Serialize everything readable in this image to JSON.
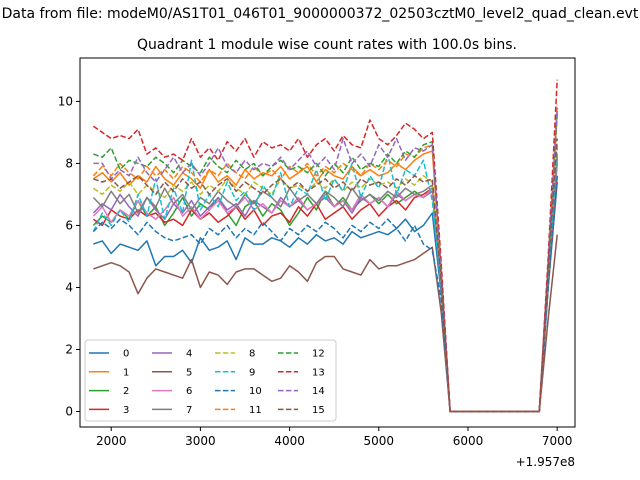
{
  "figure": {
    "suptitle": "Data from file: modeM0/AS1T01_046T01_9000000372_02503cztM0_level2_quad_clean.evt",
    "axis_offset_label": "+1.957e8"
  },
  "chart_data": {
    "type": "line",
    "title": "Quadrant 1 module wise count rates with 100.0s bins.",
    "xlabel": "",
    "ylabel": "",
    "x_offset": 195700000,
    "xlim": [
      1650,
      7200
    ],
    "ylim": [
      -0.5,
      11.4
    ],
    "xticks": [
      2000,
      3000,
      4000,
      5000,
      6000,
      7000
    ],
    "xtick_labels": [
      "2000",
      "3000",
      "4000",
      "5000",
      "6000",
      "7000"
    ],
    "yticks": [
      0,
      2,
      4,
      6,
      8,
      10
    ],
    "ytick_labels": [
      "0",
      "2",
      "4",
      "6",
      "8",
      "10"
    ],
    "grid": false,
    "legend": {
      "position": "lower-left",
      "columns": 4
    },
    "x": [
      1800,
      1900,
      2000,
      2100,
      2200,
      2300,
      2400,
      2500,
      2600,
      2700,
      2800,
      2900,
      3000,
      3100,
      3200,
      3300,
      3400,
      3500,
      3600,
      3700,
      3800,
      3900,
      4000,
      4100,
      4200,
      4300,
      4400,
      4500,
      4600,
      4700,
      4800,
      4900,
      5000,
      5100,
      5200,
      5300,
      5400,
      5500,
      5600,
      5700,
      5800,
      5900,
      6000,
      6100,
      6200,
      6300,
      6400,
      6500,
      6600,
      6700,
      6800,
      6900,
      7000
    ],
    "series": [
      {
        "name": "0",
        "color": "#1f77b4",
        "dash": "solid",
        "values": [
          5.4,
          5.5,
          5.1,
          5.4,
          5.3,
          5.2,
          5.5,
          4.7,
          5.0,
          5.0,
          5.2,
          4.8,
          5.6,
          5.2,
          5.3,
          5.5,
          4.9,
          5.6,
          5.4,
          5.4,
          5.6,
          5.5,
          5.3,
          5.6,
          5.4,
          5.7,
          5.5,
          5.6,
          5.4,
          5.8,
          5.6,
          5.7,
          5.8,
          5.7,
          5.9,
          6.2,
          5.8,
          6.0,
          6.4,
          3.8,
          0.0,
          0.0,
          0.0,
          0.0,
          0.0,
          0.0,
          0.0,
          0.0,
          0.0,
          0.0,
          0.0,
          4.0,
          7.4
        ]
      },
      {
        "name": "1",
        "color": "#ff7f0e",
        "dash": "solid",
        "values": [
          7.5,
          7.7,
          7.4,
          7.7,
          7.3,
          7.6,
          7.4,
          7.9,
          7.5,
          7.3,
          7.7,
          7.5,
          7.2,
          7.8,
          7.4,
          7.6,
          7.3,
          7.8,
          7.5,
          7.7,
          7.6,
          7.9,
          7.5,
          7.7,
          7.9,
          7.4,
          7.8,
          7.6,
          7.5,
          7.9,
          7.6,
          7.8,
          7.6,
          7.7,
          8.0,
          7.8,
          8.1,
          8.3,
          8.4,
          4.5,
          0.0,
          0.0,
          0.0,
          0.0,
          0.0,
          0.0,
          0.0,
          0.0,
          0.0,
          0.0,
          0.0,
          4.5,
          9.7
        ]
      },
      {
        "name": "2",
        "color": "#2ca02c",
        "dash": "solid",
        "values": [
          6.0,
          6.3,
          6.1,
          6.5,
          6.2,
          6.8,
          6.3,
          6.6,
          6.0,
          6.4,
          6.9,
          6.3,
          6.7,
          6.5,
          6.9,
          6.4,
          6.0,
          6.6,
          6.8,
          6.3,
          6.7,
          6.5,
          6.0,
          6.4,
          6.9,
          6.5,
          7.1,
          6.6,
          6.9,
          6.5,
          6.8,
          7.0,
          6.7,
          7.0,
          6.7,
          6.9,
          7.1,
          6.9,
          7.2,
          4.0,
          0.0,
          0.0,
          0.0,
          0.0,
          0.0,
          0.0,
          0.0,
          0.0,
          0.0,
          0.0,
          0.0,
          4.2,
          8.0
        ]
      },
      {
        "name": "3",
        "color": "#d62728",
        "dash": "solid",
        "values": [
          6.2,
          6.0,
          6.5,
          6.3,
          6.2,
          6.5,
          6.3,
          6.4,
          6.1,
          6.2,
          6.0,
          6.5,
          6.2,
          6.4,
          6.1,
          6.3,
          6.6,
          6.2,
          6.5,
          6.0,
          6.3,
          6.4,
          6.1,
          6.6,
          6.3,
          6.7,
          6.2,
          6.4,
          6.6,
          6.2,
          6.5,
          6.7,
          6.3,
          6.6,
          6.8,
          6.5,
          6.9,
          7.0,
          7.2,
          4.0,
          0.0,
          0.0,
          0.0,
          0.0,
          0.0,
          0.0,
          0.0,
          0.0,
          0.0,
          0.0,
          0.0,
          4.1,
          7.6
        ]
      },
      {
        "name": "4",
        "color": "#9467bd",
        "dash": "solid",
        "values": [
          6.4,
          6.7,
          6.5,
          7.0,
          6.6,
          6.3,
          6.9,
          6.5,
          6.2,
          6.7,
          6.4,
          6.8,
          6.3,
          6.6,
          6.9,
          6.5,
          6.7,
          6.3,
          6.8,
          6.6,
          6.4,
          6.9,
          6.6,
          6.8,
          6.5,
          6.7,
          6.9,
          6.6,
          6.8,
          6.4,
          6.9,
          6.7,
          6.9,
          6.6,
          7.0,
          6.8,
          7.0,
          6.9,
          7.1,
          4.0,
          0.0,
          0.0,
          0.0,
          0.0,
          0.0,
          0.0,
          0.0,
          0.0,
          0.0,
          0.0,
          0.0,
          4.2,
          8.2
        ]
      },
      {
        "name": "5",
        "color": "#8c564b",
        "dash": "solid",
        "values": [
          4.6,
          4.7,
          4.8,
          4.7,
          4.5,
          3.8,
          4.3,
          4.6,
          4.5,
          4.4,
          4.3,
          4.9,
          4.0,
          4.5,
          4.4,
          4.1,
          4.5,
          4.6,
          4.6,
          4.4,
          4.2,
          4.3,
          4.7,
          4.5,
          4.2,
          4.8,
          5.0,
          5.0,
          4.6,
          4.5,
          4.4,
          4.9,
          4.6,
          4.7,
          4.7,
          4.8,
          4.9,
          5.1,
          5.3,
          3.2,
          0.0,
          0.0,
          0.0,
          0.0,
          0.0,
          0.0,
          0.0,
          0.0,
          0.0,
          0.0,
          0.0,
          3.0,
          5.7
        ]
      },
      {
        "name": "6",
        "color": "#e377c2",
        "dash": "solid",
        "values": [
          6.3,
          6.6,
          6.1,
          6.5,
          6.3,
          6.8,
          6.4,
          6.2,
          6.5,
          6.9,
          6.3,
          6.6,
          6.2,
          6.5,
          6.8,
          6.4,
          6.6,
          6.9,
          6.5,
          6.7,
          6.4,
          6.8,
          6.6,
          6.9,
          6.5,
          6.7,
          7.0,
          6.6,
          6.8,
          6.5,
          7.0,
          6.7,
          6.9,
          6.6,
          7.1,
          6.8,
          7.0,
          6.9,
          7.2,
          4.0,
          0.0,
          0.0,
          0.0,
          0.0,
          0.0,
          0.0,
          0.0,
          0.0,
          0.0,
          0.0,
          0.0,
          4.3,
          8.1
        ]
      },
      {
        "name": "7",
        "color": "#7f7f7f",
        "dash": "solid",
        "values": [
          6.9,
          6.6,
          7.1,
          6.7,
          7.0,
          6.4,
          6.9,
          6.6,
          7.2,
          6.7,
          7.0,
          6.5,
          6.9,
          6.7,
          7.1,
          6.8,
          6.6,
          7.0,
          6.7,
          7.1,
          6.9,
          6.6,
          7.2,
          6.8,
          7.0,
          6.7,
          7.1,
          6.9,
          6.6,
          7.2,
          6.8,
          7.0,
          6.8,
          7.1,
          6.9,
          7.2,
          7.0,
          7.1,
          7.3,
          4.1,
          0.0,
          0.0,
          0.0,
          0.0,
          0.0,
          0.0,
          0.0,
          0.0,
          0.0,
          0.0,
          0.0,
          4.3,
          8.3
        ]
      },
      {
        "name": "8",
        "color": "#bcbd22",
        "dash": "dashed",
        "values": [
          7.2,
          7.0,
          7.3,
          7.1,
          7.4,
          7.0,
          7.3,
          7.1,
          6.9,
          7.3,
          7.1,
          7.4,
          7.0,
          7.3,
          7.1,
          7.5,
          7.2,
          7.0,
          7.4,
          7.2,
          7.0,
          7.5,
          7.2,
          7.3,
          7.1,
          7.4,
          7.2,
          7.5,
          7.1,
          7.4,
          7.2,
          7.5,
          7.3,
          7.4,
          7.2,
          7.5,
          7.3,
          7.6,
          7.4,
          4.3,
          0.0,
          0.0,
          0.0,
          0.0,
          0.0,
          0.0,
          0.0,
          0.0,
          0.0,
          0.0,
          0.0,
          4.6,
          8.6
        ]
      },
      {
        "name": "9",
        "color": "#17becf",
        "dash": "dashed",
        "values": [
          5.8,
          6.4,
          6.0,
          6.5,
          6.1,
          7.0,
          6.3,
          7.5,
          6.2,
          7.2,
          6.4,
          8.1,
          6.5,
          7.0,
          6.6,
          7.4,
          6.8,
          7.1,
          6.5,
          7.3,
          6.9,
          7.7,
          6.6,
          7.2,
          7.0,
          7.8,
          6.8,
          7.5,
          7.1,
          8.0,
          6.9,
          7.6,
          7.2,
          8.3,
          7.0,
          7.8,
          7.6,
          8.1,
          6.8,
          4.0,
          0.0,
          0.0,
          0.0,
          0.0,
          0.0,
          0.0,
          0.0,
          0.0,
          0.0,
          0.0,
          0.0,
          4.4,
          8.5
        ]
      },
      {
        "name": "10",
        "color": "#1f77b4",
        "dash": "dashed",
        "values": [
          5.8,
          6.1,
          5.9,
          6.2,
          6.0,
          5.7,
          6.1,
          5.8,
          5.6,
          5.5,
          5.6,
          5.7,
          5.4,
          5.9,
          5.7,
          6.0,
          5.6,
          5.9,
          5.7,
          6.1,
          5.8,
          5.5,
          5.9,
          5.7,
          6.0,
          5.8,
          6.1,
          5.9,
          5.6,
          6.0,
          5.8,
          6.1,
          5.9,
          6.2,
          5.9,
          5.5,
          6.0,
          5.4,
          5.2,
          3.6,
          0.0,
          0.0,
          0.0,
          0.0,
          0.0,
          0.0,
          0.0,
          0.0,
          0.0,
          0.0,
          0.0,
          4.0,
          7.6
        ]
      },
      {
        "name": "11",
        "color": "#ff7f0e",
        "dash": "dashed",
        "values": [
          7.6,
          7.9,
          7.6,
          8.0,
          7.7,
          7.5,
          7.9,
          7.6,
          7.8,
          7.5,
          7.9,
          7.7,
          7.4,
          7.8,
          7.6,
          8.0,
          7.7,
          7.5,
          7.9,
          7.6,
          7.8,
          7.5,
          7.9,
          7.7,
          8.0,
          7.6,
          7.9,
          7.7,
          8.0,
          7.8,
          7.6,
          8.0,
          7.8,
          8.1,
          7.9,
          8.3,
          8.2,
          8.5,
          8.6,
          4.6,
          0.0,
          0.0,
          0.0,
          0.0,
          0.0,
          0.0,
          0.0,
          0.0,
          0.0,
          0.0,
          0.0,
          4.8,
          9.9
        ]
      },
      {
        "name": "12",
        "color": "#2ca02c",
        "dash": "dashed",
        "values": [
          8.3,
          8.2,
          8.5,
          7.8,
          8.1,
          8.0,
          7.9,
          8.2,
          8.0,
          7.7,
          8.1,
          7.9,
          7.7,
          8.2,
          7.9,
          7.7,
          8.1,
          7.8,
          8.0,
          7.6,
          7.9,
          8.1,
          7.8,
          7.9,
          7.7,
          8.0,
          7.6,
          8.0,
          7.7,
          8.2,
          7.8,
          8.0,
          7.9,
          8.3,
          8.0,
          8.4,
          8.2,
          8.6,
          8.7,
          4.5,
          0.0,
          0.0,
          0.0,
          0.0,
          0.0,
          0.0,
          0.0,
          0.0,
          0.0,
          0.0,
          0.0,
          4.7,
          9.6
        ]
      },
      {
        "name": "13",
        "color": "#d62728",
        "dash": "dashed",
        "values": [
          9.2,
          9.0,
          8.8,
          8.9,
          8.8,
          9.1,
          8.3,
          8.5,
          8.2,
          8.3,
          8.1,
          8.8,
          8.2,
          8.5,
          8.1,
          8.7,
          8.4,
          8.8,
          8.2,
          8.7,
          8.5,
          8.6,
          8.4,
          8.8,
          8.2,
          8.6,
          8.8,
          8.4,
          8.9,
          8.6,
          8.5,
          9.4,
          8.8,
          8.6,
          8.9,
          9.3,
          9.1,
          8.8,
          9.0,
          4.8,
          0.0,
          0.0,
          0.0,
          0.0,
          0.0,
          0.0,
          0.0,
          0.0,
          0.0,
          0.0,
          0.0,
          5.0,
          10.7
        ]
      },
      {
        "name": "14",
        "color": "#9467bd",
        "dash": "dashed",
        "values": [
          8.0,
          8.0,
          7.5,
          7.8,
          7.6,
          8.2,
          7.7,
          7.4,
          7.8,
          8.2,
          7.7,
          8.0,
          7.6,
          8.0,
          8.5,
          7.9,
          7.7,
          8.1,
          7.8,
          8.0,
          7.9,
          8.2,
          7.8,
          8.1,
          8.4,
          7.9,
          8.2,
          7.8,
          8.8,
          8.0,
          8.3,
          7.9,
          8.6,
          8.2,
          8.8,
          8.1,
          8.5,
          8.4,
          8.6,
          4.5,
          0.0,
          0.0,
          0.0,
          0.0,
          0.0,
          0.0,
          0.0,
          0.0,
          0.0,
          0.0,
          0.0,
          4.8,
          9.8
        ]
      },
      {
        "name": "15",
        "color": "#8c564b",
        "dash": "dashed",
        "values": [
          7.5,
          7.4,
          7.5,
          7.2,
          7.4,
          7.6,
          7.3,
          7.0,
          7.4,
          7.1,
          7.5,
          7.2,
          7.4,
          7.0,
          7.3,
          7.5,
          7.1,
          7.4,
          7.2,
          7.0,
          7.3,
          7.5,
          7.2,
          7.4,
          7.1,
          7.3,
          7.5,
          7.2,
          7.4,
          7.1,
          7.5,
          7.3,
          7.4,
          7.2,
          7.5,
          7.3,
          7.6,
          7.4,
          7.5,
          4.2,
          0.0,
          0.0,
          0.0,
          0.0,
          0.0,
          0.0,
          0.0,
          0.0,
          0.0,
          0.0,
          0.0,
          4.6,
          8.8
        ]
      }
    ]
  }
}
